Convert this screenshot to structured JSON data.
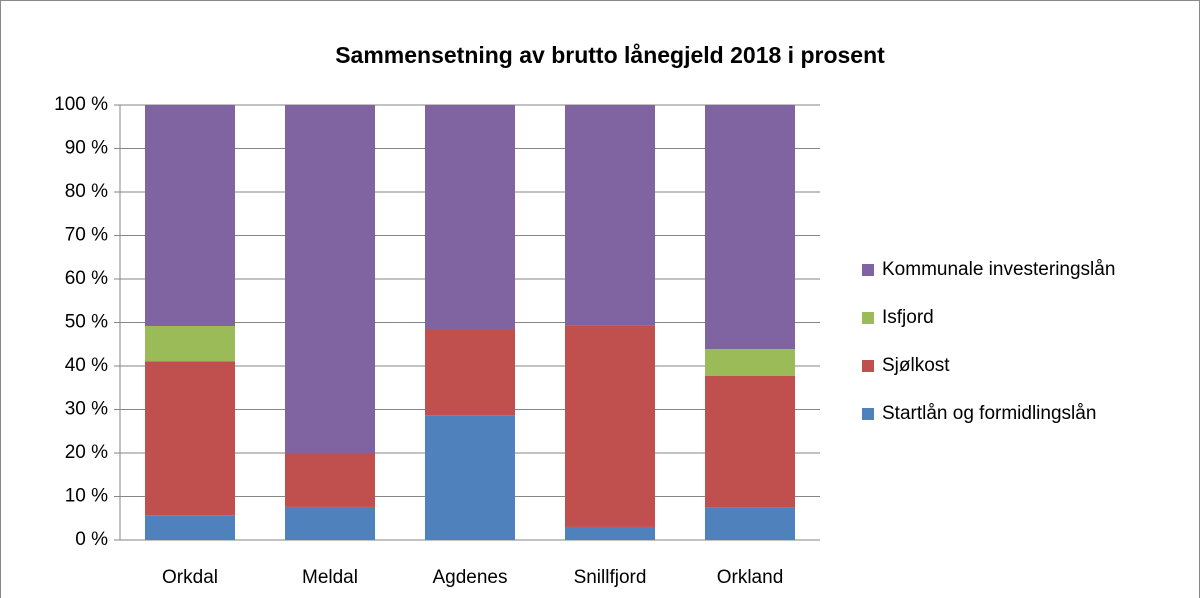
{
  "chart_data": {
    "type": "stacked_bar",
    "title": "Sammensetning av brutto lånegjeld 2018 i prosent",
    "categories": [
      "Orkdal",
      "Meldal",
      "Agdenes",
      "Snillfjord",
      "Orkland"
    ],
    "series": [
      {
        "name": "Startlån og formidlingslån",
        "color": "#4f81bd",
        "values": [
          5.7,
          7.6,
          28.7,
          3.0,
          7.4
        ]
      },
      {
        "name": "Sjølkost",
        "color": "#c0504d",
        "values": [
          35.4,
          12.4,
          19.8,
          46.4,
          30.3
        ]
      },
      {
        "name": "Isfjord",
        "color": "#9bbb59",
        "values": [
          8.1,
          0,
          0,
          0,
          6.2
        ]
      },
      {
        "name": "Kommunale investeringslån",
        "color": "#8064a2",
        "values": [
          50.8,
          80.0,
          51.5,
          50.6,
          56.1
        ]
      }
    ],
    "ylim": [
      0,
      100
    ],
    "yticks": [
      {
        "value": 0,
        "label": "0 %"
      },
      {
        "value": 10,
        "label": "10 %"
      },
      {
        "value": 20,
        "label": "20 %"
      },
      {
        "value": 30,
        "label": "30 %"
      },
      {
        "value": 40,
        "label": "40 %"
      },
      {
        "value": 50,
        "label": "50 %"
      },
      {
        "value": 60,
        "label": "60 %"
      },
      {
        "value": 70,
        "label": "70 %"
      },
      {
        "value": 80,
        "label": "80 %"
      },
      {
        "value": 90,
        "label": "90 %"
      },
      {
        "value": 100,
        "label": "100 %"
      }
    ],
    "grid": true,
    "legend": "right"
  }
}
